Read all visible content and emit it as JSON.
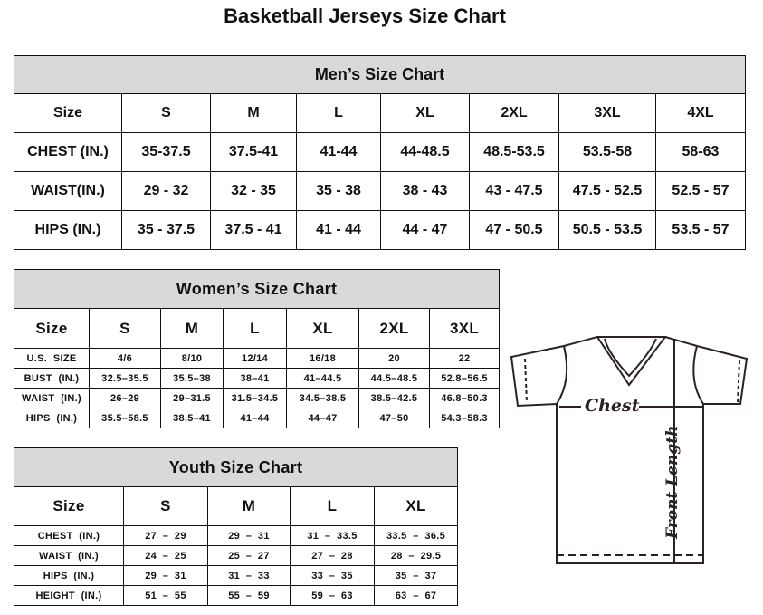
{
  "title": "Basketball Jerseys Size Chart",
  "mens": {
    "title": "Men’s Size Chart",
    "header": [
      "Size",
      "S",
      "M",
      "L",
      "XL",
      "2XL",
      "3XL",
      "4XL"
    ],
    "rows": [
      [
        "CHEST (IN.)",
        "35-37.5",
        "37.5-41",
        "41-44",
        "44-48.5",
        "48.5-53.5",
        "53.5-58",
        "58-63"
      ],
      [
        "WAIST(IN.)",
        "29 - 32",
        "32 - 35",
        "35 - 38",
        "38 - 43",
        "43 - 47.5",
        "47.5 - 52.5",
        "52.5 - 57"
      ],
      [
        "HIPS (IN.)",
        "35 - 37.5",
        "37.5 - 41",
        "41 - 44",
        "44 - 47",
        "47 - 50.5",
        "50.5 - 53.5",
        "53.5 - 57"
      ]
    ]
  },
  "womens": {
    "title": "Women’s Size Chart",
    "header": [
      "Size",
      "S",
      "M",
      "L",
      "XL",
      "2XL",
      "3XL"
    ],
    "rows": [
      [
        "U.S.  SIZE",
        "4/6",
        "8/10",
        "12/14",
        "16/18",
        "20",
        "22"
      ],
      [
        "BUST  (IN.)",
        "32.5–35.5",
        "35.5–38",
        "38–41",
        "41–44.5",
        "44.5–48.5",
        "52.8–56.5"
      ],
      [
        "WAIST  (IN.)",
        "26–29",
        "29–31.5",
        "31.5–34.5",
        "34.5–38.5",
        "38.5–42.5",
        "46.8–50.3"
      ],
      [
        "HIPS  (IN.)",
        "35.5–58.5",
        "38.5–41",
        "41–44",
        "44–47",
        "47–50",
        "54.3–58.3"
      ]
    ]
  },
  "youth": {
    "title": "Youth Size Chart",
    "header": [
      "Size",
      "S",
      "M",
      "L",
      "XL"
    ],
    "rows": [
      [
        "CHEST  (IN.)",
        "27  –  29",
        "29  –  31",
        "31  –  33.5",
        "33.5  –  36.5"
      ],
      [
        "WAIST  (IN.)",
        "24  –  25",
        "25  –  27",
        "27  –  28",
        "28  –  29.5"
      ],
      [
        "HIPS  (IN.)",
        "29  –  31",
        "31  –  33",
        "33  –  35",
        "35  –  37"
      ],
      [
        "HEIGHT  (IN.)",
        "51  –  55",
        "55  –  59",
        "59  –  63",
        "63  –  67"
      ]
    ]
  },
  "diagram": {
    "chest_label": "Chest",
    "length_label": "Front Length"
  }
}
